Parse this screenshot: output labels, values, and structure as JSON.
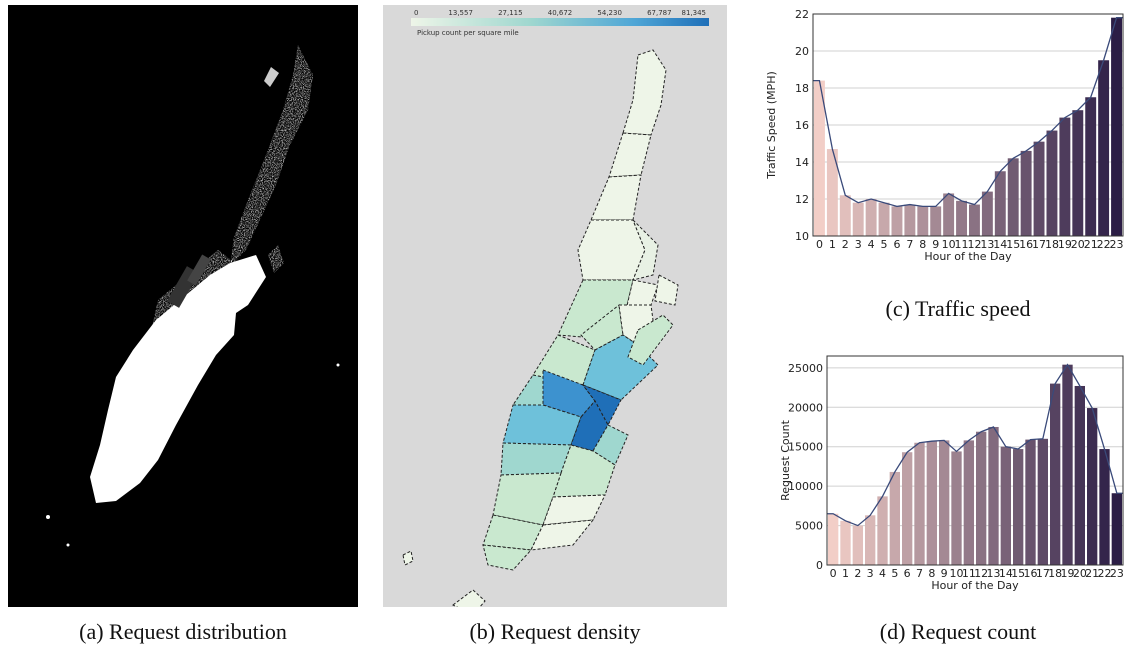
{
  "captions": {
    "a": "(a) Request distribution",
    "b": "(b) Request density",
    "c": "(c) Traffic speed",
    "d": "(d) Request count"
  },
  "colors": {
    "line": "#3a4a7a",
    "grid": "#d0d0d0",
    "map_bg": "#d9d9d9",
    "density_scale": [
      "#eef5e8",
      "#c9e8cf",
      "#9fd7cf",
      "#6ec1da",
      "#3d92cf",
      "#1f6fb8"
    ]
  },
  "density_colorbar": {
    "ticks": [
      "0",
      "13,557",
      "27,115",
      "40,672",
      "54,230",
      "67,787",
      "81,345"
    ],
    "title": "Pickup count per square mile"
  },
  "chart_data": [
    {
      "id": "traffic_speed",
      "type": "bar",
      "categories": [
        "0",
        "1",
        "2",
        "3",
        "4",
        "5",
        "6",
        "7",
        "8",
        "9",
        "10",
        "11",
        "12",
        "13",
        "14",
        "15",
        "16",
        "17",
        "18",
        "19",
        "20",
        "21",
        "22",
        "23"
      ],
      "values": [
        18.4,
        14.7,
        12.2,
        11.8,
        12.0,
        11.8,
        11.6,
        11.7,
        11.6,
        11.6,
        12.3,
        11.9,
        11.7,
        12.4,
        13.5,
        14.2,
        14.6,
        15.1,
        15.7,
        16.4,
        16.8,
        17.5,
        19.5,
        21.8
      ],
      "line_overlay": true,
      "xlabel": "Hour of the Day",
      "ylabel": "Traffic Speed (MPH)",
      "ylim": [
        10,
        22
      ],
      "yticks": [
        10,
        12,
        14,
        16,
        18,
        20,
        22
      ],
      "grid": true,
      "color_start": "#f2cec7",
      "color_end": "#2b1d45"
    },
    {
      "id": "request_count",
      "type": "bar",
      "categories": [
        "0",
        "1",
        "2",
        "3",
        "4",
        "5",
        "6",
        "7",
        "8",
        "9",
        "10",
        "11",
        "12",
        "13",
        "14",
        "15",
        "16",
        "17",
        "18",
        "19",
        "20",
        "21",
        "22",
        "23"
      ],
      "values": [
        6500,
        5600,
        5000,
        6300,
        8700,
        11800,
        14300,
        15500,
        15700,
        15800,
        14400,
        15800,
        16900,
        17500,
        15000,
        14700,
        15900,
        16000,
        23000,
        25400,
        22700,
        19900,
        14700,
        9100
      ],
      "line_overlay": true,
      "xlabel": "Hour of the Day",
      "ylabel": "Request Count",
      "ylim": [
        0,
        26500
      ],
      "yticks": [
        0,
        5000,
        10000,
        15000,
        20000,
        25000
      ],
      "grid": true,
      "color_start": "#f2cec7",
      "color_end": "#2b1d45"
    }
  ]
}
